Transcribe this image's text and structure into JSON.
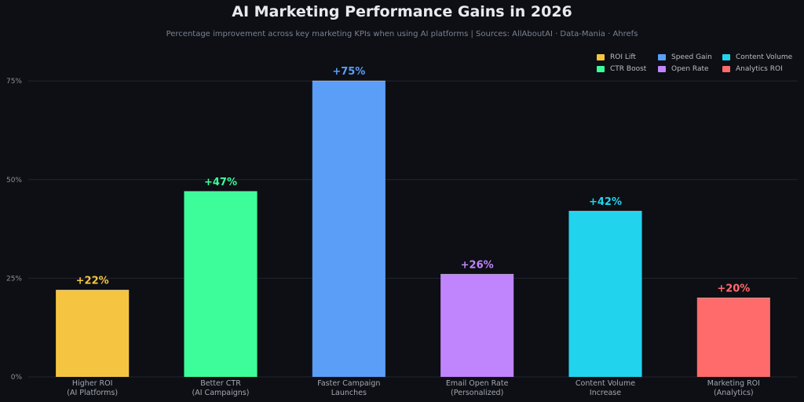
{
  "chart_data": {
    "type": "bar",
    "title": "AI Marketing Performance Gains in 2026",
    "subtitle": "Percentage improvement across key marketing KPIs when using AI platforms  |  Sources: AllAboutAI · Data-Mania · Ahrefs",
    "categories": [
      [
        "Higher ROI",
        "(AI Platforms)"
      ],
      [
        "Better CTR",
        "(AI Campaigns)"
      ],
      [
        "Faster Campaign",
        "Launches"
      ],
      [
        "Email Open Rate",
        "(Personalized)"
      ],
      [
        "Content Volume",
        "Increase"
      ],
      [
        "Marketing ROI",
        "(Analytics)"
      ]
    ],
    "values": [
      22,
      47,
      75,
      26,
      42,
      20
    ],
    "value_labels": [
      "+22%",
      "+47%",
      "+75%",
      "+26%",
      "+42%",
      "+20%"
    ],
    "colors": [
      "#f5c542",
      "#3dfc9a",
      "#5b9ef8",
      "#c084fc",
      "#22d3ee",
      "#ff6b6b"
    ],
    "legend": [
      "ROI Lift",
      "CTR Boost",
      "Speed Gain",
      "Open Rate",
      "Content Volume",
      "Analytics ROI"
    ],
    "legend_placement": "top-right",
    "yticks": [
      0,
      25,
      50,
      75
    ],
    "ytick_labels": [
      "0%",
      "25%",
      "50%",
      "75%"
    ],
    "ylim": [
      0,
      82
    ],
    "grid": true,
    "xlabel": "",
    "ylabel": ""
  }
}
